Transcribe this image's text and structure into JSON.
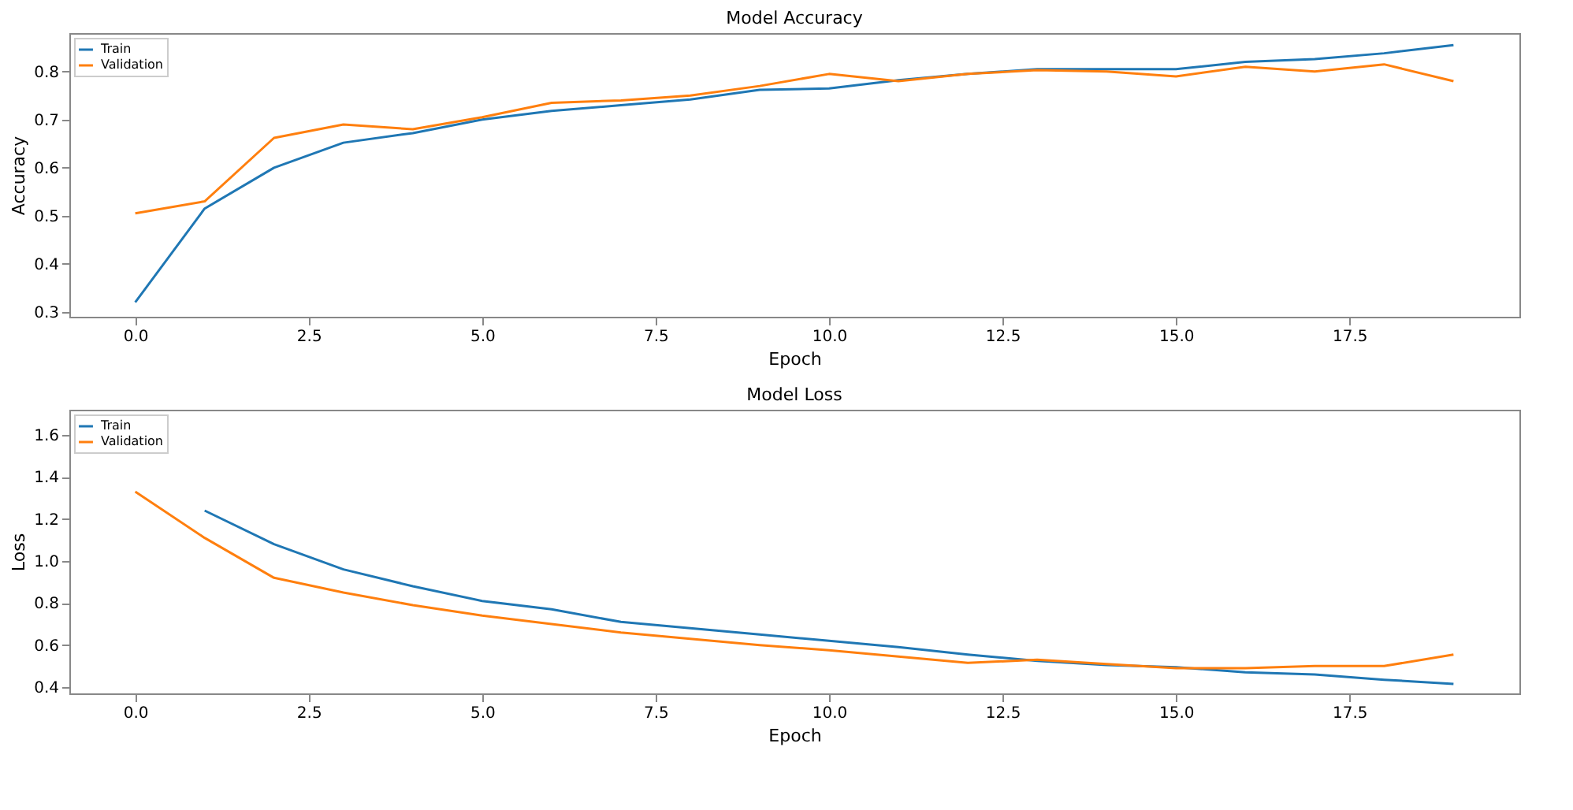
{
  "chart_data": [
    {
      "type": "line",
      "title": "Model Accuracy",
      "xlabel": "Epoch",
      "ylabel": "Accuracy",
      "x": [
        0,
        1,
        2,
        3,
        4,
        5,
        6,
        7,
        8,
        9,
        10,
        11,
        12,
        13,
        14,
        15,
        16,
        17,
        18,
        19
      ],
      "series": [
        {
          "name": "Train",
          "color": "#1f77b4",
          "values": [
            0.32,
            0.515,
            0.6,
            0.652,
            0.672,
            0.7,
            0.718,
            0.73,
            0.742,
            0.762,
            0.765,
            0.782,
            0.795,
            0.805,
            0.805,
            0.805,
            0.82,
            0.826,
            0.838,
            0.855
          ]
        },
        {
          "name": "Validation",
          "color": "#ff7f0e",
          "values": [
            0.505,
            0.53,
            0.662,
            0.69,
            0.68,
            0.705,
            0.735,
            0.74,
            0.75,
            0.77,
            0.795,
            0.78,
            0.795,
            0.803,
            0.8,
            0.79,
            0.81,
            0.8,
            0.815,
            0.78
          ]
        }
      ],
      "xlim": [
        -0.95,
        19.95
      ],
      "xticks": [
        {
          "value": 0,
          "label": "0.0"
        },
        2.5,
        {
          "value": 5,
          "label": "5.0"
        },
        7.5,
        {
          "value": 10,
          "label": "10.0"
        },
        12.5,
        {
          "value": 15,
          "label": "15.0"
        },
        17.5
      ],
      "ylim": [
        0.29,
        0.88
      ],
      "yticks": [
        0.3,
        0.4,
        0.5,
        0.6,
        0.7,
        0.8
      ],
      "legend": "top left",
      "grid": false
    },
    {
      "type": "line",
      "title": "Model Loss",
      "xlabel": "Epoch",
      "ylabel": "Loss",
      "x": [
        0,
        1,
        2,
        3,
        4,
        5,
        6,
        7,
        8,
        9,
        10,
        11,
        12,
        13,
        14,
        15,
        16,
        17,
        18,
        19
      ],
      "series": [
        {
          "name": "Train",
          "color": "#1f77b4",
          "values": [
            null,
            1.24,
            1.08,
            0.96,
            0.88,
            0.81,
            0.77,
            0.71,
            0.68,
            0.65,
            0.62,
            0.59,
            0.555,
            0.525,
            0.505,
            0.495,
            0.47,
            0.46,
            0.435,
            0.415
          ]
        },
        {
          "name": "Validation",
          "color": "#ff7f0e",
          "values": [
            1.33,
            1.11,
            0.92,
            0.85,
            0.79,
            0.74,
            0.7,
            0.66,
            0.63,
            0.6,
            0.575,
            0.545,
            0.515,
            0.53,
            0.51,
            0.49,
            0.49,
            0.5,
            0.5,
            0.555
          ]
        }
      ],
      "xlim": [
        -0.95,
        19.95
      ],
      "xticks": [
        {
          "value": 0,
          "label": "0.0"
        },
        2.5,
        {
          "value": 5,
          "label": "5.0"
        },
        7.5,
        {
          "value": 10,
          "label": "10.0"
        },
        12.5,
        {
          "value": 15,
          "label": "15.0"
        },
        17.5
      ],
      "ylim": [
        0.37,
        1.72
      ],
      "yticks": [
        0.4,
        0.6,
        0.8,
        {
          "value": 1,
          "label": "1.0"
        },
        1.2,
        1.4,
        1.6
      ],
      "legend": "top left",
      "grid": false
    }
  ]
}
